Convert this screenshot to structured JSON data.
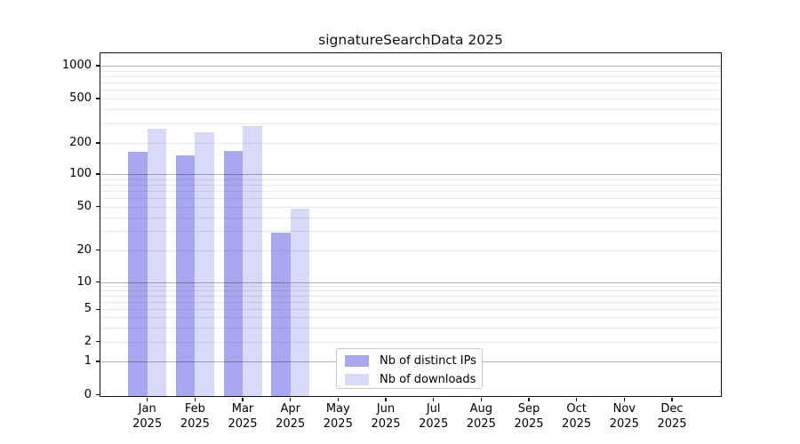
{
  "chart_data": {
    "type": "bar",
    "title": "signatureSearchData 2025",
    "categories": [
      "Jan",
      "Feb",
      "Mar",
      "Apr",
      "May",
      "Jun",
      "Jul",
      "Aug",
      "Sep",
      "Oct",
      "Nov",
      "Dec"
    ],
    "category_year": "2025",
    "series": [
      {
        "name": "Nb of distinct IPs",
        "color": "#a8a8f0",
        "values": [
          165,
          152,
          168,
          29,
          0,
          0,
          0,
          0,
          0,
          0,
          0,
          0
        ]
      },
      {
        "name": "Nb of downloads",
        "color": "#d9d9f8",
        "values": [
          270,
          248,
          285,
          48,
          0,
          0,
          0,
          0,
          0,
          0,
          0,
          0
        ]
      }
    ],
    "xlabel": "",
    "ylabel": "",
    "y_ticks": [
      0,
      1,
      2,
      5,
      10,
      20,
      50,
      100,
      200,
      500,
      1000
    ],
    "y_scale": "symlog-like (0 shown on log axis)",
    "ylim": [
      0,
      1200
    ],
    "grid": "horizontal major and minor gridlines, drawn over bars",
    "legend_position": "lower center, inside plot",
    "colors": {
      "bar_distinct_ips": "#a8a8f0",
      "bar_downloads": "#d9d9f8",
      "major_grid": "#b0b0b0",
      "minor_grid": "#e9e9e9",
      "axis": "#111111",
      "text": "#000000"
    }
  }
}
